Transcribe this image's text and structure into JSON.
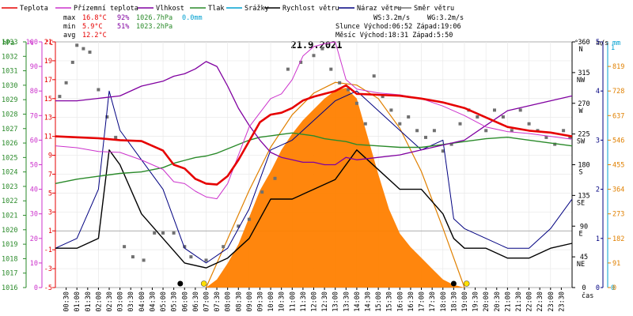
{
  "legend": [
    {
      "label": "Teplota",
      "color": "#e60000",
      "key": "temp"
    },
    {
      "label": "Přízemní teplota",
      "color": "#cc33cc",
      "key": "ground"
    },
    {
      "label": "Vlhkost",
      "color": "#8000a0",
      "key": "hum"
    },
    {
      "label": "Tlak",
      "color": "#2a8a2a",
      "key": "press"
    },
    {
      "label": "Srážky",
      "color": "#00a0d0",
      "key": "rain"
    },
    {
      "label": "Rychlost větru",
      "color": "#000000",
      "key": "wind"
    },
    {
      "label": "Náraz větru",
      "color": "#000080",
      "key": "gust"
    },
    {
      "label": "Směr větru",
      "color": "#707070",
      "key": "dir"
    }
  ],
  "stats": {
    "max": {
      "label": "max",
      "temp": "16.8°C",
      "hum": "92%",
      "press": "1026.7hPa",
      "rain": "0.0mm"
    },
    "min": {
      "label": "min",
      "temp": "5.9°C",
      "hum": "51%",
      "press": "1023.2hPa"
    },
    "avg": {
      "label": "avg",
      "temp": "12.2°C"
    }
  },
  "info": {
    "ws": "WS:3.2m/s",
    "wg": "WG:3.2m/s",
    "sun": "Slunce Východ:06:52  Západ:19:06",
    "moon": "Měsíc  Východ:18:31  Západ:5:50"
  },
  "chart_data": {
    "type": "line",
    "title": "21.9.2021",
    "x": [
      "00:30",
      "01:00",
      "01:30",
      "02:00",
      "02:30",
      "03:00",
      "03:30",
      "04:00",
      "04:30",
      "05:00",
      "05:30",
      "06:00",
      "06:30",
      "07:00",
      "07:30",
      "08:00",
      "08:30",
      "09:00",
      "09:30",
      "10:00",
      "10:30",
      "11:00",
      "11:30",
      "12:00",
      "12:30",
      "13:00",
      "13:30",
      "14:00",
      "14:30",
      "15:00",
      "15:30",
      "16:00",
      "16:30",
      "17:00",
      "17:30",
      "18:00",
      "18:30",
      "19:00",
      "19:30",
      "20:00",
      "20:30",
      "21:00",
      "21:30",
      "22:00",
      "22:30",
      "23:00",
      "23:30"
    ],
    "xlabel": "čas",
    "axes": {
      "hpa": {
        "unit": "hPa",
        "ticks": [
          1016,
          1017,
          1018,
          1019,
          1020,
          1021,
          1022,
          1023,
          1024,
          1025,
          1026,
          1027,
          1028,
          1029,
          1030,
          1031,
          1032,
          1033
        ]
      },
      "pct": {
        "unit": "%",
        "ticks": [
          0,
          10,
          20,
          30,
          40,
          50,
          60,
          70,
          80,
          90,
          100
        ]
      },
      "degc": {
        "unit": "°C",
        "ticks": [
          -5,
          -3,
          -1,
          1,
          3,
          5,
          7,
          9,
          11,
          13,
          15,
          17,
          19,
          21
        ]
      },
      "dir": {
        "unit": "°",
        "ticks": [
          {
            "v": "360",
            "n": "N"
          },
          {
            "v": "315",
            "n": "NW"
          },
          {
            "v": "270",
            "n": "W"
          },
          {
            "v": "225",
            "n": "SW"
          },
          {
            "v": "180",
            "n": "S"
          },
          {
            "v": "135",
            "n": "SE"
          },
          {
            "v": "90",
            "n": "E"
          },
          {
            "v": "45",
            "n": "NE"
          },
          {
            "v": "0",
            "n": ""
          }
        ]
      },
      "ms": {
        "unit": "m/s",
        "ticks": [
          "5",
          "4",
          "3",
          "2",
          "1",
          "0"
        ]
      },
      "mm": {
        "unit": "mm",
        "ticks": [
          "1",
          "0"
        ]
      },
      "solar": {
        "ticks": [
          "819",
          "728",
          "637",
          "546",
          "455",
          "364",
          "273",
          "182",
          "91",
          "0"
        ]
      }
    },
    "series": {
      "temp_times": [
        0,
        1,
        2,
        3,
        4,
        5,
        5.5,
        6,
        6.5,
        7,
        7.5,
        8,
        8.5,
        9,
        9.5,
        10,
        10.5,
        11,
        11.5,
        12,
        12.5,
        13,
        13.5,
        14,
        15,
        16,
        17,
        18,
        19,
        20,
        21,
        22,
        23,
        24
      ],
      "temp": [
        11,
        10.9,
        10.8,
        10.6,
        10.5,
        9.5,
        8.0,
        7.6,
        6.5,
        6.0,
        5.9,
        6.8,
        8.5,
        10.5,
        12.5,
        13.3,
        13.5,
        14.0,
        14.8,
        15.2,
        15.5,
        15.8,
        16.4,
        15.5,
        15.4,
        15.3,
        15.0,
        14.6,
        14.0,
        13.0,
        12.0,
        11.6,
        11.4,
        11.0
      ],
      "ground_times": [
        0,
        1,
        2,
        3,
        4,
        5,
        5.5,
        6,
        6.5,
        7,
        7.5,
        8,
        8.5,
        9,
        9.5,
        10,
        10.5,
        11,
        11.5,
        12,
        12.5,
        13,
        13.5,
        14,
        15,
        16,
        17,
        18,
        19,
        20,
        21,
        22,
        23,
        24
      ],
      "ground": [
        10,
        9.8,
        9.4,
        9.3,
        8.5,
        7.5,
        6.2,
        6.0,
        5.2,
        4.6,
        4.4,
        6.0,
        9.0,
        12.0,
        13.5,
        15.0,
        15.5,
        17.0,
        19.5,
        20.5,
        20.8,
        21.0,
        17.0,
        16.0,
        15.6,
        15.4,
        15.0,
        14.2,
        13.2,
        12.0,
        11.5,
        11.3,
        11.0,
        10.7
      ],
      "hum_times": [
        0,
        1,
        2,
        3,
        4,
        5,
        5.5,
        6,
        6.5,
        7,
        7.5,
        8,
        8.5,
        9,
        9.5,
        10,
        10.5,
        11,
        11.5,
        12,
        12.5,
        13,
        13.5,
        14,
        15,
        16,
        17,
        18,
        19,
        20,
        21,
        22,
        23,
        24
      ],
      "hum": [
        76,
        76,
        77,
        78,
        82,
        84,
        86,
        87,
        89,
        92,
        90,
        82,
        73,
        66,
        60,
        55,
        53,
        52,
        51,
        51,
        50,
        50,
        53,
        52,
        53,
        54,
        56,
        58,
        60,
        66,
        72,
        74,
        76,
        78
      ],
      "press_times": [
        0,
        1,
        2,
        3,
        4,
        5,
        5.5,
        6,
        6.5,
        7,
        7.5,
        8,
        8.5,
        9,
        9.5,
        10,
        10.5,
        11,
        11.5,
        12,
        12.5,
        13,
        13.5,
        14,
        15,
        16,
        17,
        18,
        19,
        20,
        21,
        22,
        23,
        24
      ],
      "press": [
        1023.2,
        1023.5,
        1023.7,
        1023.9,
        1024.0,
        1024.3,
        1024.6,
        1024.8,
        1025.0,
        1025.1,
        1025.3,
        1025.6,
        1025.9,
        1026.2,
        1026.4,
        1026.5,
        1026.6,
        1026.7,
        1026.6,
        1026.5,
        1026.3,
        1026.2,
        1026.1,
        1025.9,
        1025.8,
        1025.7,
        1025.7,
        1025.9,
        1026.1,
        1026.3,
        1026.4,
        1026.2,
        1026.0,
        1025.8
      ],
      "solar_times": [
        7,
        7.5,
        8,
        8.5,
        9,
        9.5,
        10,
        10.5,
        11,
        11.5,
        12,
        12.5,
        13,
        13.5,
        14,
        14.5,
        15,
        15.5,
        16,
        16.5,
        17,
        17.5,
        18,
        18.5,
        19
      ],
      "solar": [
        0,
        30,
        90,
        160,
        260,
        360,
        430,
        510,
        570,
        620,
        660,
        700,
        730,
        740,
        700,
        560,
        420,
        290,
        200,
        150,
        110,
        70,
        30,
        10,
        0
      ],
      "clear_sky_times": [
        7,
        8,
        9,
        10,
        11,
        12,
        13,
        14,
        15,
        16,
        17,
        18,
        19
      ],
      "clear_sky": [
        0,
        180,
        360,
        520,
        640,
        720,
        760,
        750,
        700,
        590,
        430,
        220,
        0
      ],
      "wind_times": [
        0,
        1,
        2,
        2.5,
        3,
        4,
        5,
        6,
        7,
        8,
        9,
        10,
        11,
        12,
        13,
        14,
        15,
        16,
        17,
        18,
        18.5,
        19,
        20,
        21,
        22,
        23,
        24
      ],
      "wind": [
        0.8,
        0.8,
        1.0,
        2.8,
        2.5,
        1.5,
        1.0,
        0.5,
        0.4,
        0.6,
        1.0,
        1.8,
        1.8,
        2.0,
        2.2,
        2.8,
        2.4,
        2.0,
        2.0,
        1.5,
        1.0,
        0.8,
        0.8,
        0.6,
        0.6,
        0.8,
        0.9
      ],
      "gust_times": [
        0,
        1,
        2,
        2.5,
        3,
        4,
        5,
        6,
        7,
        8,
        9,
        10,
        11,
        12,
        13,
        14,
        15,
        16,
        17,
        18,
        18.5,
        19,
        20,
        21,
        22,
        23,
        24
      ],
      "gust": [
        0.8,
        1.0,
        2.0,
        4.0,
        3.2,
        2.6,
        2.0,
        0.8,
        0.5,
        0.8,
        1.6,
        2.8,
        3.0,
        3.4,
        3.8,
        4.0,
        3.6,
        3.2,
        2.8,
        3.0,
        1.4,
        1.2,
        1.0,
        0.8,
        0.8,
        1.2,
        1.8
      ],
      "dir_times": [
        0.2,
        0.5,
        0.8,
        1.0,
        1.3,
        1.6,
        2.0,
        2.4,
        2.8,
        3.2,
        3.6,
        4.1,
        4.6,
        5.0,
        5.5,
        6.0,
        6.3,
        7.0,
        7.8,
        8.5,
        9.0,
        9.6,
        10.2,
        10.8,
        11.4,
        12.0,
        12.4,
        12.8,
        13.2,
        13.6,
        14.0,
        14.4,
        14.8,
        15.2,
        15.6,
        16.0,
        16.4,
        16.8,
        17.2,
        17.6,
        18.0,
        18.4,
        18.8,
        19.2,
        19.6,
        20.0,
        20.4,
        20.8,
        21.2,
        21.6,
        22.0,
        22.4,
        22.8,
        23.2,
        23.6,
        23.9
      ],
      "dir": [
        280,
        300,
        330,
        355,
        350,
        345,
        290,
        250,
        220,
        60,
        45,
        40,
        80,
        80,
        80,
        60,
        45,
        40,
        60,
        90,
        100,
        140,
        160,
        320,
        330,
        340,
        350,
        320,
        300,
        290,
        270,
        240,
        310,
        280,
        260,
        240,
        250,
        230,
        220,
        230,
        200,
        210,
        240,
        260,
        250,
        230,
        260,
        250,
        230,
        260,
        240,
        230,
        220,
        210,
        230,
        220
      ],
      "sun_markers": [
        {
          "t": 6.9,
          "kind": "sunrise"
        },
        {
          "t": 19.1,
          "kind": "sunset"
        }
      ],
      "moon_markers": [
        {
          "t": 5.8,
          "kind": "moonset"
        },
        {
          "t": 18.5,
          "kind": "moonrise"
        }
      ]
    },
    "grid": true
  }
}
